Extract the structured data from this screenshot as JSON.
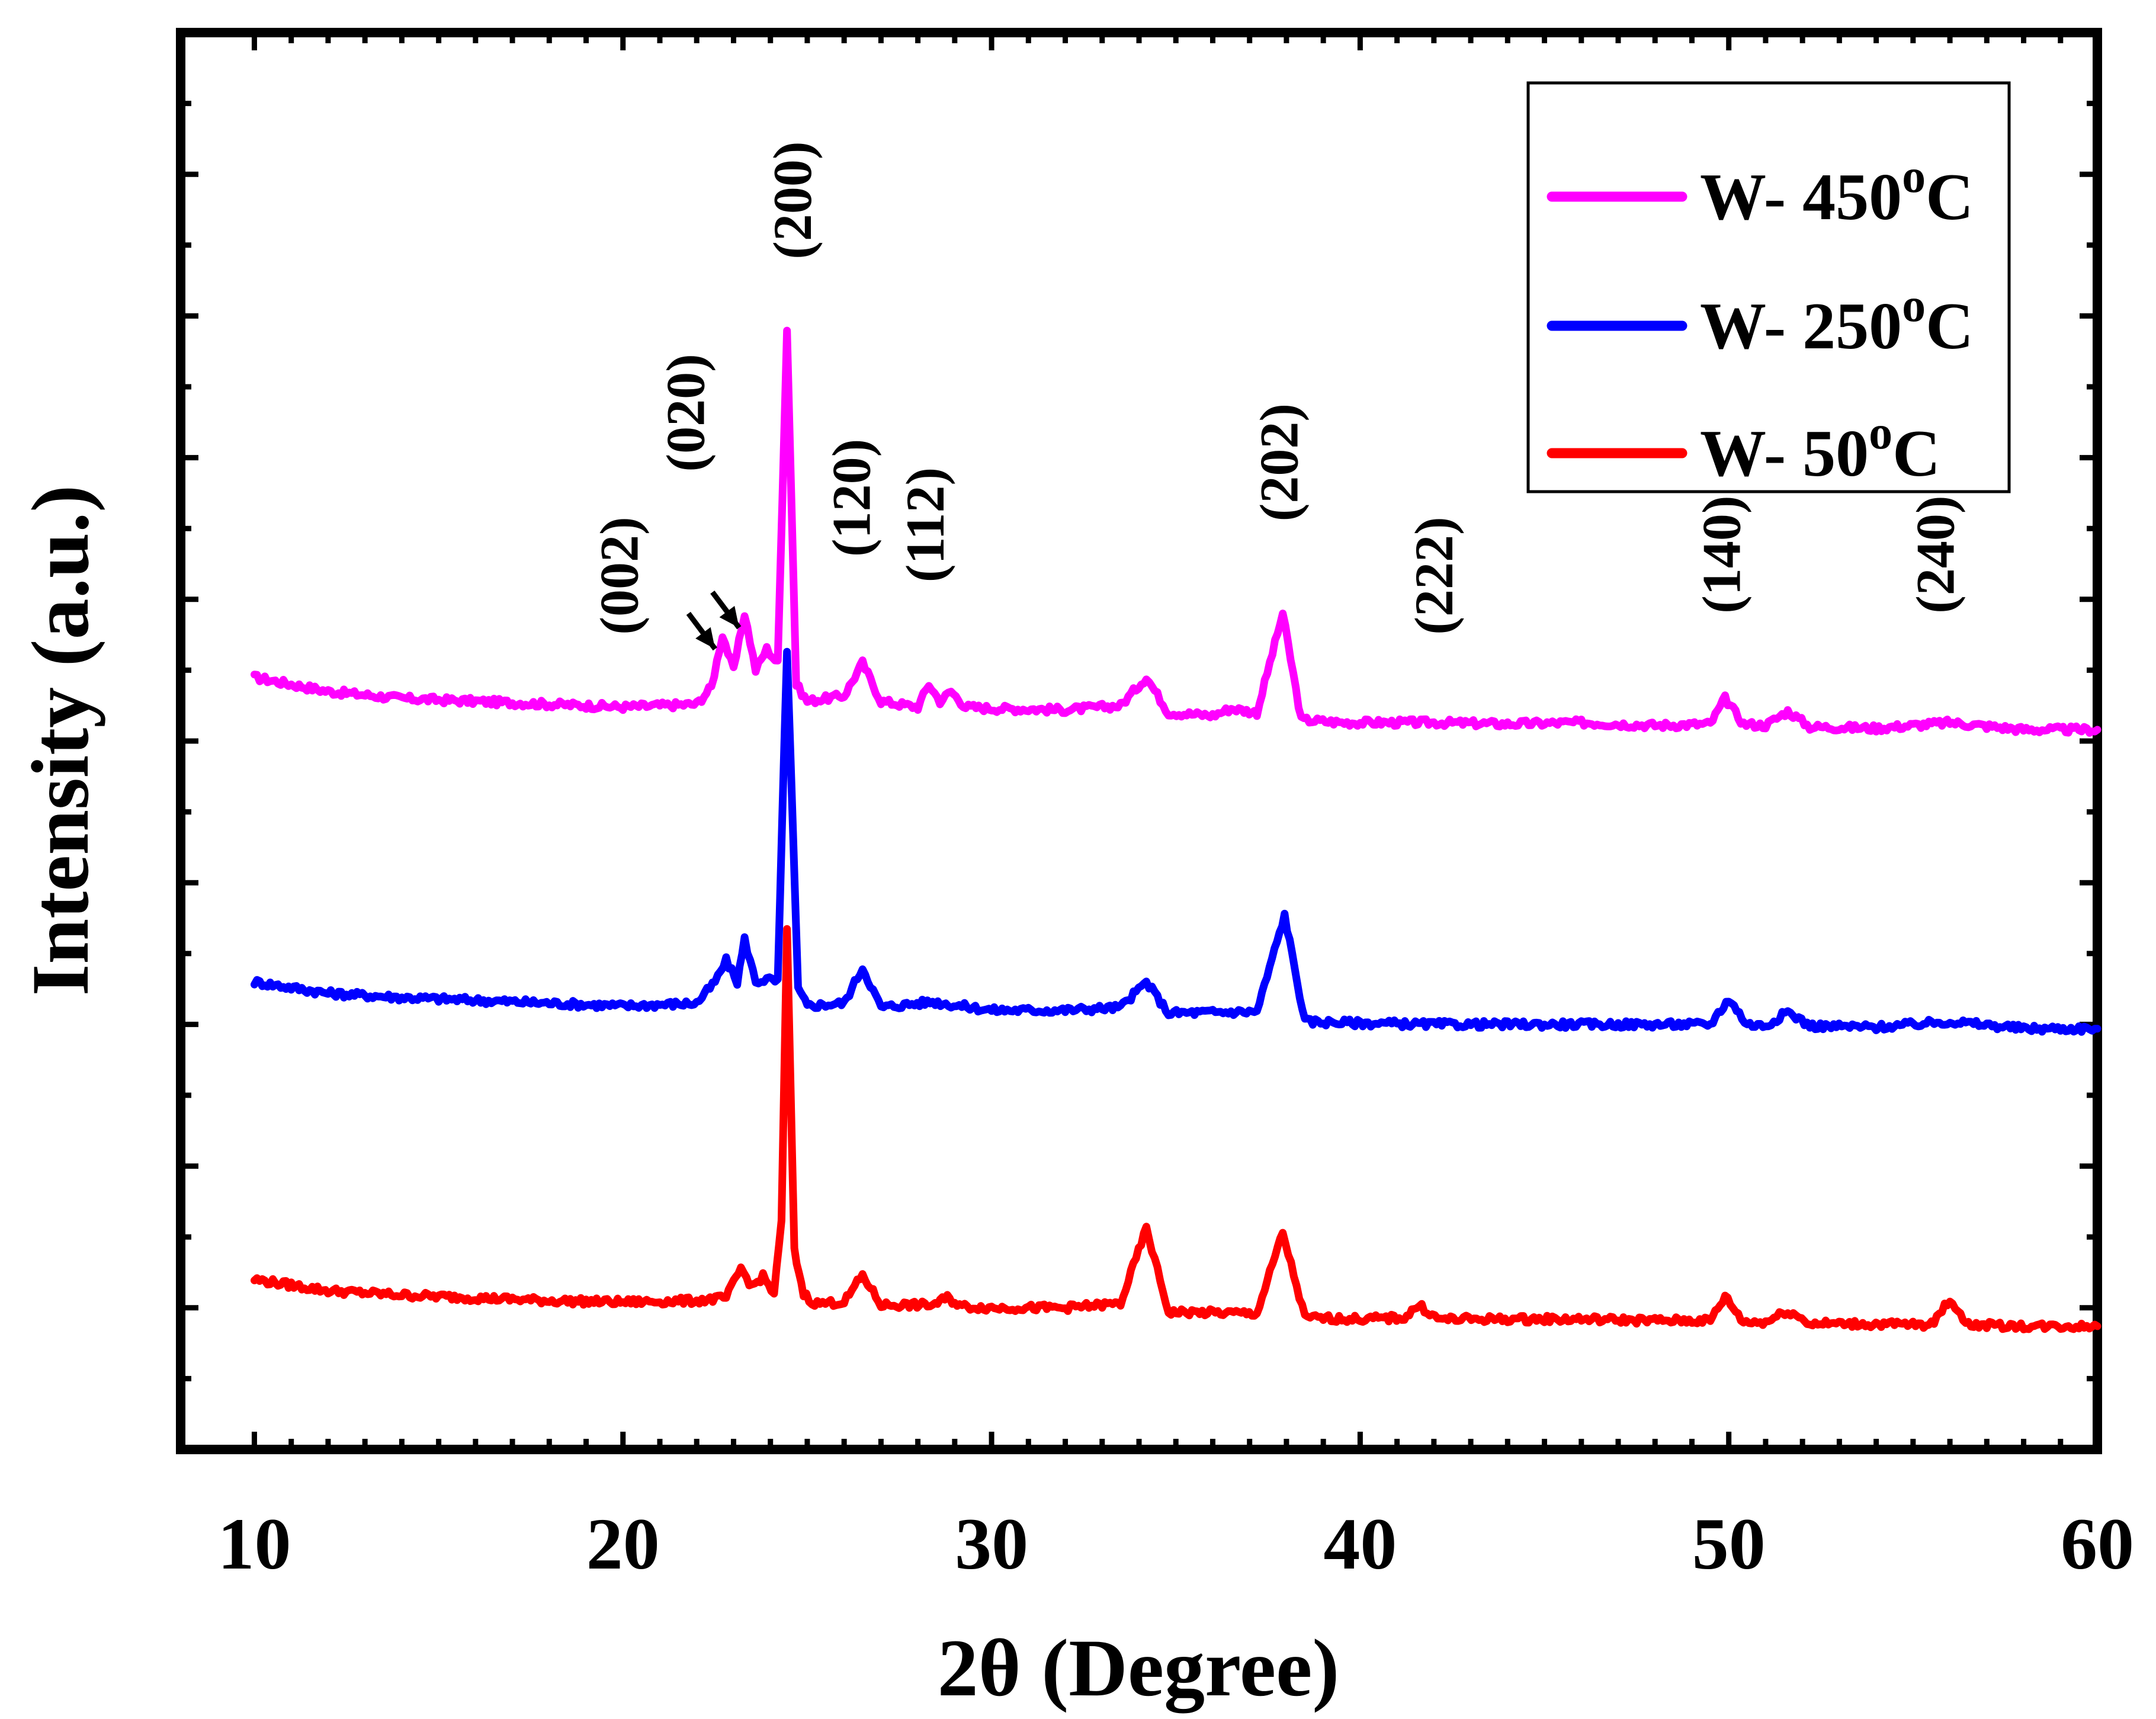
{
  "chart_data": {
    "type": "line",
    "title": "",
    "xlabel": "2θ (Degree)",
    "ylabel": "Intensity (a.u.)",
    "xlim": [
      8,
      60
    ],
    "ylim": [
      0,
      100
    ],
    "x_ticks": [
      10,
      20,
      30,
      40,
      50,
      60
    ],
    "x_tick_labels": [
      "10",
      "20",
      "30",
      "40",
      "50",
      "60"
    ],
    "y_tick_labels_shown": false,
    "legend_position": "top-right",
    "series": [
      {
        "name": "W- 450",
        "sup": "o",
        "suffix": "C",
        "color": "#ff00ff",
        "x": [
          10,
          12,
          14,
          16,
          18,
          20,
          22,
          22.4,
          22.7,
          23.0,
          23.3,
          23.6,
          23.9,
          24.2,
          24.45,
          24.7,
          25.0,
          26.0,
          26.5,
          27.0,
          28.0,
          28.3,
          28.6,
          28.9,
          29.3,
          30,
          32,
          33.5,
          34.2,
          34.8,
          36,
          36.5,
          37.2,
          37.9,
          38.4,
          39.5,
          42,
          44,
          46,
          48,
          49.5,
          49.9,
          50.4,
          51,
          51.6,
          52.2,
          54,
          56,
          58,
          60
        ],
        "y": [
          54.5,
          53.5,
          53,
          52.8,
          52.6,
          52.4,
          52.6,
          53.8,
          57.5,
          55,
          59,
          55,
          56.5,
          55.5,
          79,
          54,
          52.8,
          53.2,
          55.5,
          52.8,
          52.4,
          54,
          52.8,
          53.5,
          52.4,
          52.3,
          52.2,
          52.5,
          54.5,
          52,
          51.8,
          52.3,
          52,
          59,
          51.5,
          51.3,
          51.3,
          51.2,
          51.3,
          51.1,
          51.2,
          53,
          51.2,
          51.1,
          52.1,
          51,
          50.9,
          51.3,
          50.8,
          50.8
        ]
      },
      {
        "name": "W- 250",
        "sup": "o",
        "suffix": "C",
        "color": "#0000ff",
        "x": [
          10,
          12,
          14,
          16,
          18,
          20,
          22,
          22.5,
          22.8,
          23.1,
          23.3,
          23.6,
          23.9,
          24.2,
          24.45,
          24.75,
          25.0,
          26.0,
          26.5,
          27.0,
          28.4,
          28.9,
          30,
          32,
          33.5,
          34.2,
          34.8,
          37.2,
          37.95,
          38.5,
          40,
          42,
          44,
          46,
          48,
          49.5,
          50,
          50.5,
          51,
          51.6,
          52.2,
          54,
          56,
          58,
          60
        ],
        "y": [
          33,
          32.2,
          31.9,
          31.7,
          31.5,
          31.3,
          31.5,
          33,
          34.5,
          33,
          36,
          33,
          33.2,
          33,
          56.5,
          32.5,
          31.3,
          31.5,
          34,
          31.2,
          31.6,
          31.4,
          31,
          31,
          31.2,
          33,
          30.8,
          30.9,
          37.7,
          30.2,
          30.1,
          30,
          30,
          30,
          30,
          30,
          31.8,
          30,
          29.9,
          30.9,
          29.9,
          29.8,
          30.2,
          29.7,
          29.7
        ]
      },
      {
        "name": "W- 50",
        "sup": "o",
        "suffix": "C",
        "color": "#ff0000",
        "x": [
          10,
          12,
          14,
          16,
          18,
          20,
          22,
          22.8,
          23.2,
          23.5,
          23.8,
          24.1,
          24.3,
          24.45,
          24.65,
          24.9,
          25.2,
          26.0,
          26.5,
          27.0,
          28.4,
          28.8,
          29.2,
          30,
          32,
          33.5,
          34.2,
          34.8,
          37.2,
          37.9,
          38.5,
          40,
          41.2,
          41.6,
          42.1,
          44,
          46,
          48,
          49.5,
          49.9,
          50.4,
          51,
          51.6,
          52.2,
          55.5,
          56,
          56.5,
          58,
          60
        ],
        "y": [
          12,
          11.2,
          10.9,
          10.7,
          10.5,
          10.4,
          10.5,
          10.7,
          12.8,
          11.5,
          12.2,
          11,
          16,
          36.6,
          14,
          11,
          10.3,
          10.4,
          12.3,
          10.2,
          10.2,
          10.7,
          10.1,
          10,
          10,
          10.3,
          15.6,
          9.7,
          9.6,
          15.3,
          9.3,
          9.2,
          9.3,
          10.2,
          9.2,
          9.2,
          9.2,
          9.1,
          9.1,
          10.8,
          9,
          9,
          9.8,
          8.9,
          8.8,
          10.6,
          8.8,
          8.7,
          8.7
        ]
      }
    ],
    "annotations": [
      {
        "text": "(002)",
        "x": 20.4,
        "y": 57.5,
        "arrow_to": [
          22.5,
          56.5
        ]
      },
      {
        "text": "(020)",
        "x": 22.2,
        "y": 69,
        "arrow_to": [
          23.15,
          58
        ]
      },
      {
        "text": "(200)",
        "x": 25.1,
        "y": 84
      },
      {
        "text": "(120)",
        "x": 26.7,
        "y": 63
      },
      {
        "text": "(112)",
        "x": 28.7,
        "y": 61.2
      },
      {
        "text": "(202)",
        "x": 38.3,
        "y": 65.5
      },
      {
        "text": "(222)",
        "x": 42.5,
        "y": 57.5
      },
      {
        "text": "(140)",
        "x": 50.3,
        "y": 59
      },
      {
        "text": "(240)",
        "x": 56.1,
        "y": 59
      }
    ]
  }
}
